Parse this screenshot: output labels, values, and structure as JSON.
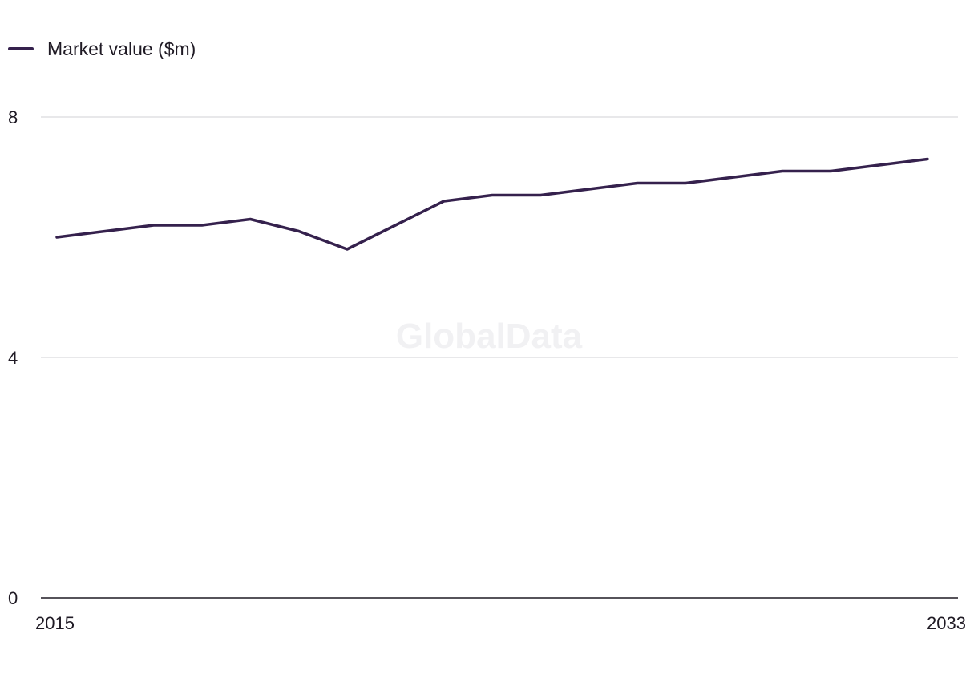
{
  "chart_data": {
    "type": "line",
    "x": [
      2015,
      2016,
      2017,
      2018,
      2019,
      2020,
      2021,
      2022,
      2023,
      2024,
      2025,
      2026,
      2027,
      2028,
      2029,
      2030,
      2031,
      2032,
      2033
    ],
    "series": [
      {
        "name": "Market value ($m)",
        "color": "#35214d",
        "values": [
          6.0,
          6.1,
          6.2,
          6.2,
          6.3,
          6.1,
          5.8,
          6.2,
          6.6,
          6.7,
          6.7,
          6.8,
          6.9,
          6.9,
          7.0,
          7.1,
          7.1,
          7.2,
          7.3
        ]
      }
    ],
    "yticks": [
      0,
      4,
      8
    ],
    "xtick_labels": [
      "2015",
      "2033"
    ],
    "ylim": [
      0,
      8
    ],
    "xlim": [
      2015,
      2033
    ],
    "grid": true,
    "legend_position": "top-left",
    "watermark": "GlobalData",
    "xlabel": "",
    "ylabel": ""
  }
}
